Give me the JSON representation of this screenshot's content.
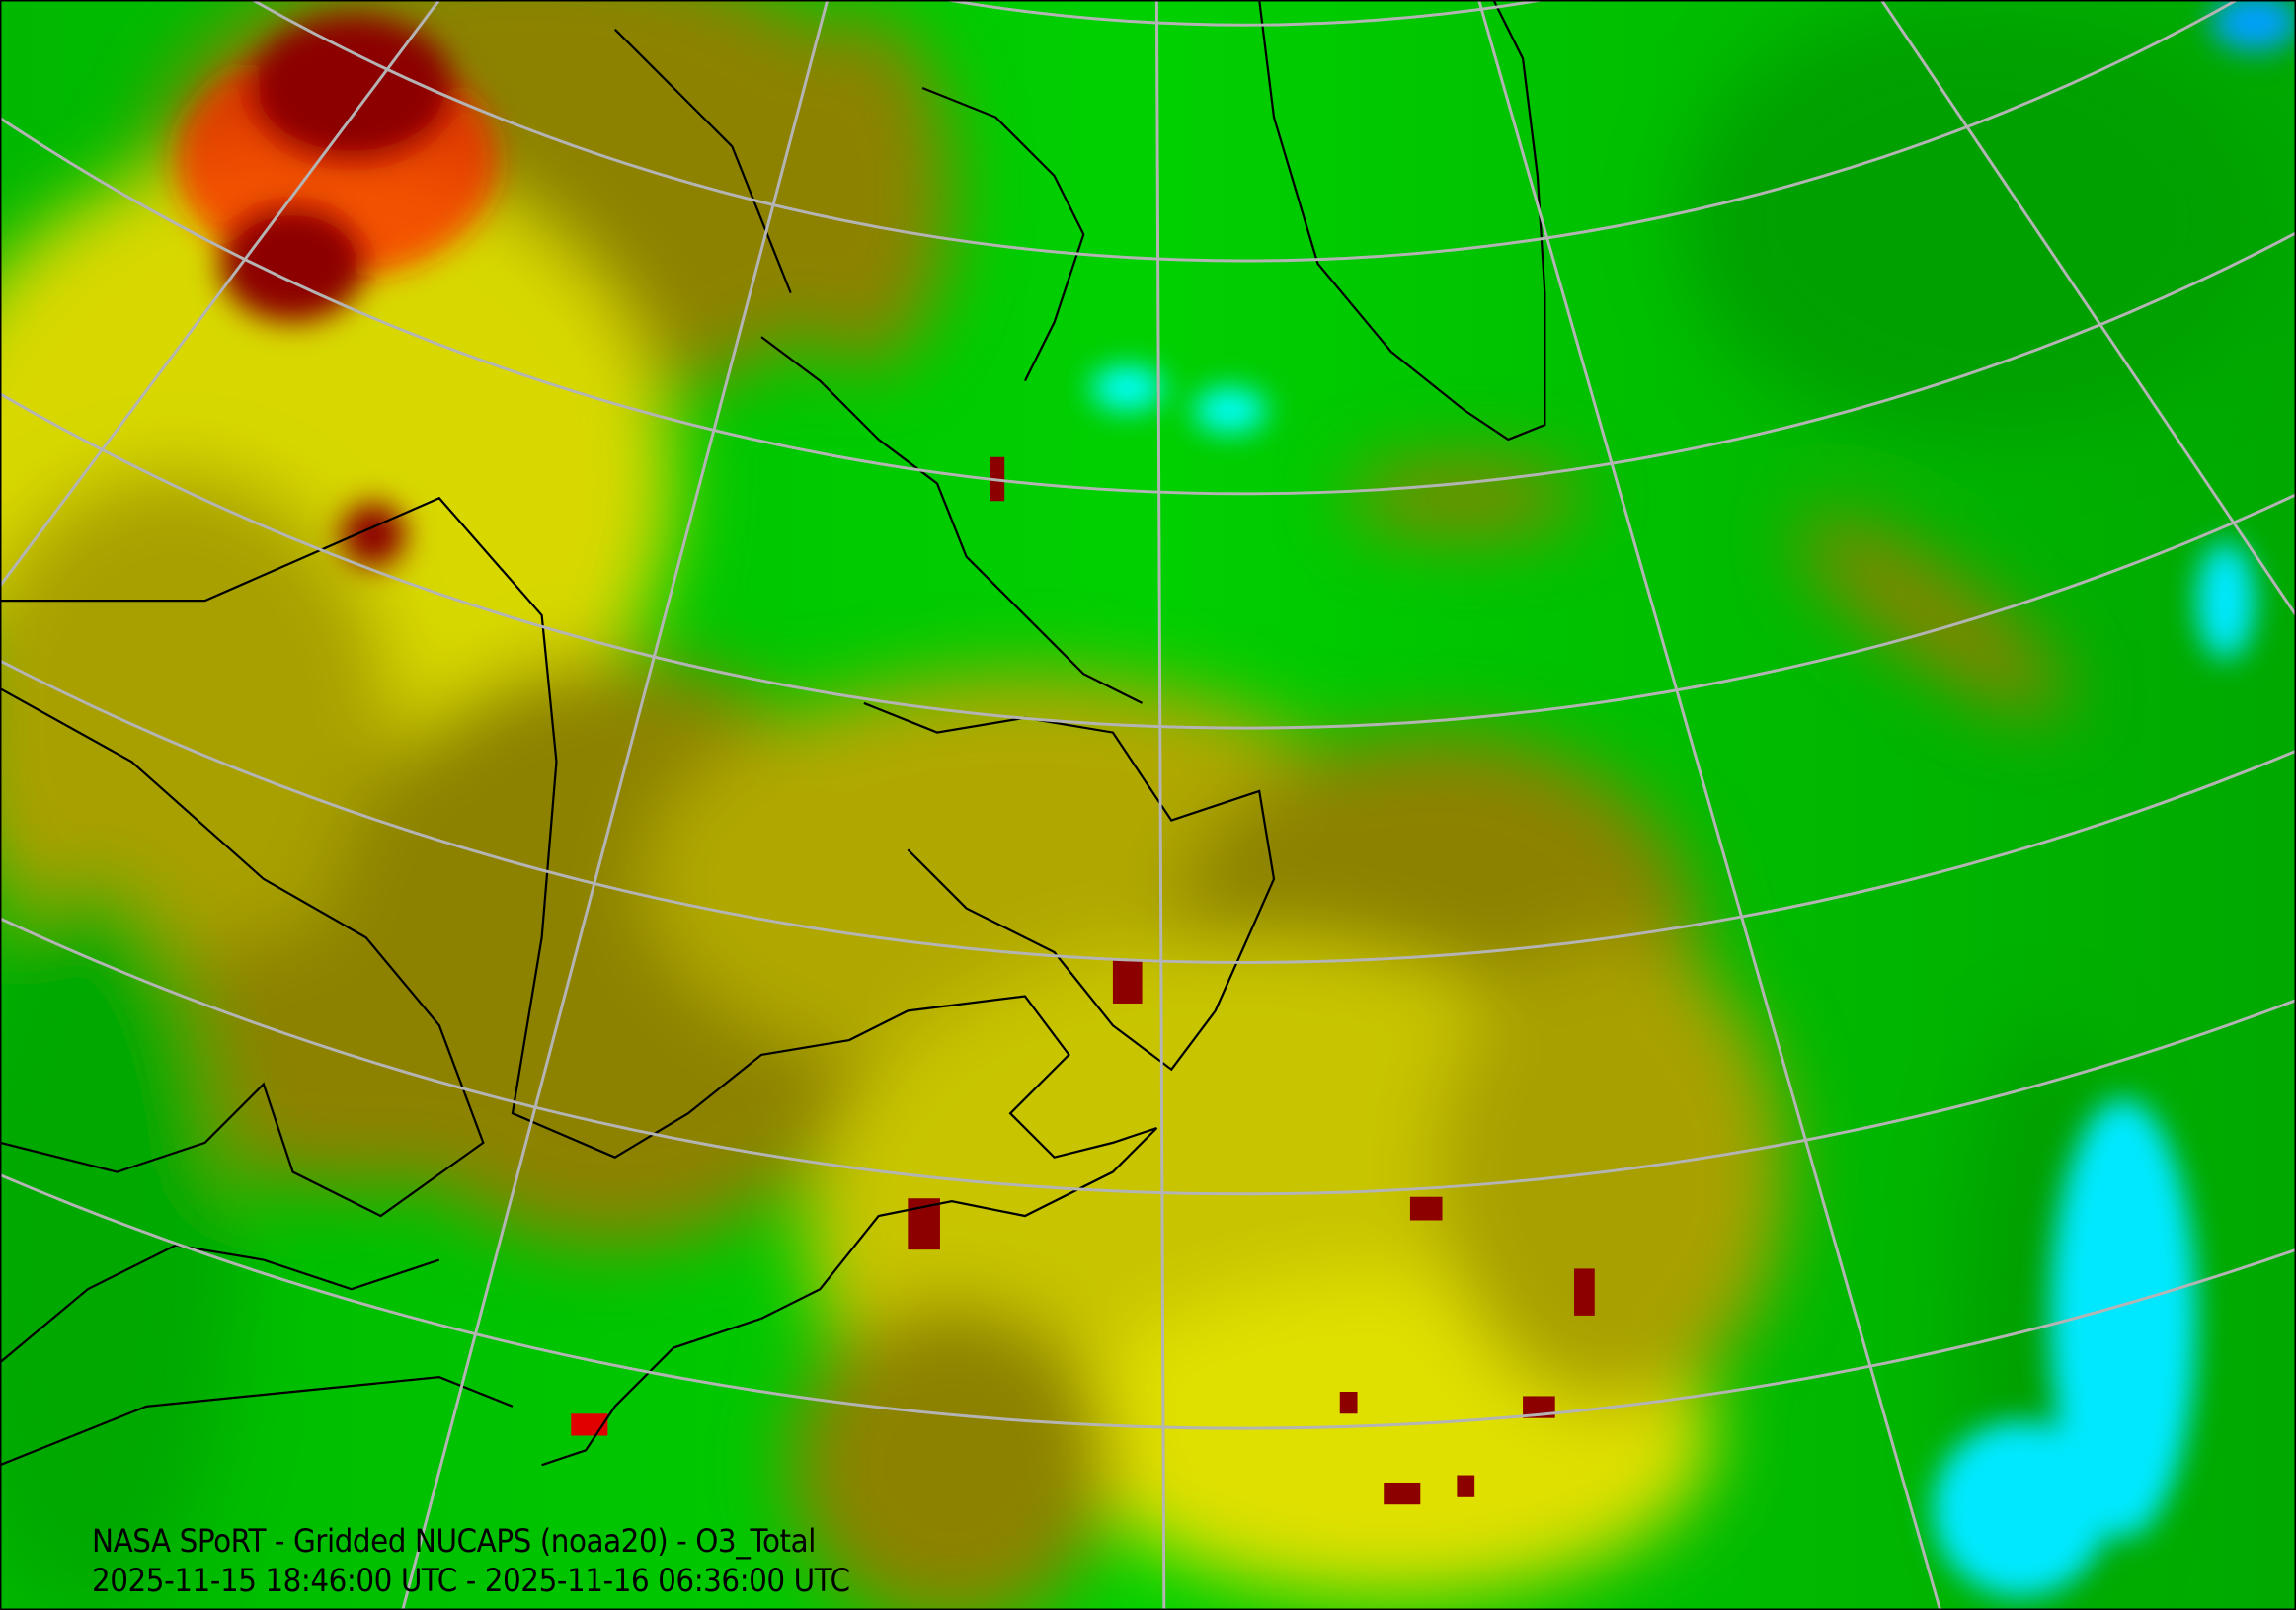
{
  "map": {
    "title": "NASA SPoRT - Gridded NUCAPS (noaa20) - O3_Total",
    "time_range": "2025-11-15 18:46:00 UTC - 2025-11-16 06:36:00 UTC",
    "colors": {
      "low_cyan": "#00ffff",
      "blue": "#00a0ff",
      "green_dark": "#00a000",
      "green": "#00e600",
      "olive": "#8c8200",
      "yellow": "#e6e600",
      "yellow_bright": "#ffff00",
      "high_red": "#8c0000",
      "graticule": "#b4b4b4",
      "coastline": "#000000"
    }
  }
}
